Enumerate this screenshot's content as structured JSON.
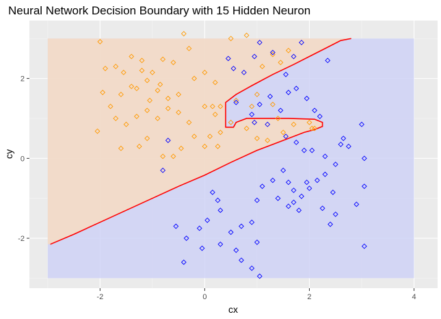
{
  "chart_data": {
    "type": "scatter",
    "title": "Neural Network Decision Boundary with 15 Hidden Neuron",
    "xlabel": "cx",
    "ylabel": "cy",
    "xlim": [
      -3.35,
      4.45
    ],
    "ylim": [
      -3.25,
      3.45
    ],
    "x_ticks": [
      -2,
      0,
      2,
      4
    ],
    "y_ticks": [
      -2,
      0,
      2
    ],
    "grid": true,
    "panel_background": "#ebebeb",
    "region_colors": {
      "orange": "#f5dcc5",
      "blue": "#cfd2f6"
    },
    "region_extent": {
      "x": [
        -3,
        4
      ],
      "y": [
        -3,
        3
      ]
    },
    "boundary_color": "#ff0000",
    "boundary": [
      [
        -2.95,
        -2.15
      ],
      [
        -2.5,
        -1.9
      ],
      [
        -2.0,
        -1.6
      ],
      [
        -1.5,
        -1.3
      ],
      [
        -1.0,
        -1.0
      ],
      [
        -0.5,
        -0.7
      ],
      [
        0.0,
        -0.42
      ],
      [
        0.5,
        -0.1
      ],
      [
        1.0,
        0.2
      ],
      [
        1.5,
        0.45
      ],
      [
        1.9,
        0.65
      ],
      [
        2.1,
        0.72
      ],
      [
        2.25,
        0.8
      ],
      [
        2.25,
        0.9
      ],
      [
        2.1,
        0.98
      ],
      [
        1.6,
        1.0
      ],
      [
        1.2,
        1.0
      ],
      [
        0.8,
        1.0
      ],
      [
        0.6,
        0.9
      ],
      [
        0.55,
        0.78
      ],
      [
        0.4,
        0.78
      ],
      [
        0.4,
        1.4
      ],
      [
        0.6,
        1.6
      ],
      [
        0.9,
        1.82
      ],
      [
        1.3,
        2.1
      ],
      [
        1.7,
        2.35
      ],
      [
        2.0,
        2.55
      ],
      [
        2.3,
        2.75
      ],
      [
        2.6,
        2.95
      ],
      [
        2.8,
        3.0
      ]
    ],
    "series": [
      {
        "color": "#ff9900",
        "points": [
          [
            -2.0,
            2.92
          ],
          [
            -1.9,
            2.25
          ],
          [
            -1.7,
            2.3
          ],
          [
            -1.55,
            2.15
          ],
          [
            -1.4,
            2.55
          ],
          [
            -1.2,
            2.45
          ],
          [
            -1.0,
            2.15
          ],
          [
            -0.8,
            2.48
          ],
          [
            -0.6,
            2.4
          ],
          [
            -0.4,
            3.12
          ],
          [
            -0.3,
            2.75
          ],
          [
            -1.95,
            1.65
          ],
          [
            -1.8,
            1.3
          ],
          [
            -1.6,
            1.6
          ],
          [
            -1.4,
            1.8
          ],
          [
            -1.3,
            1.75
          ],
          [
            -1.1,
            1.95
          ],
          [
            -0.9,
            1.7
          ],
          [
            -0.7,
            1.5
          ],
          [
            -0.5,
            1.6
          ],
          [
            -0.2,
            2.0
          ],
          [
            0.0,
            2.15
          ],
          [
            0.2,
            1.9
          ],
          [
            -1.7,
            1.0
          ],
          [
            -1.5,
            0.85
          ],
          [
            -1.3,
            1.05
          ],
          [
            -1.1,
            1.2
          ],
          [
            -0.9,
            1.0
          ],
          [
            -0.7,
            1.25
          ],
          [
            -0.5,
            1.15
          ],
          [
            -0.3,
            0.9
          ],
          [
            0.0,
            1.3
          ],
          [
            0.2,
            1.1
          ],
          [
            0.3,
            1.3
          ],
          [
            -1.1,
            0.5
          ],
          [
            -1.6,
            0.25
          ],
          [
            -0.8,
            0.05
          ],
          [
            -0.6,
            0.05
          ],
          [
            -0.2,
            0.55
          ],
          [
            0.0,
            0.3
          ],
          [
            0.1,
            0.55
          ],
          [
            0.3,
            0.65
          ],
          [
            0.5,
            0.9
          ],
          [
            0.8,
            0.75
          ],
          [
            1.0,
            0.5
          ],
          [
            1.2,
            0.45
          ],
          [
            1.5,
            0.65
          ],
          [
            2.0,
            0.9
          ],
          [
            2.05,
            0.75
          ],
          [
            2.1,
            0.75
          ],
          [
            0.6,
            1.45
          ],
          [
            0.9,
            1.3
          ],
          [
            1.0,
            1.6
          ],
          [
            1.3,
            1.35
          ],
          [
            1.1,
            2.3
          ],
          [
            1.3,
            2.6
          ],
          [
            1.6,
            2.7
          ],
          [
            0.8,
            3.08
          ],
          [
            0.5,
            3.0
          ],
          [
            -2.05,
            0.68
          ],
          [
            -1.25,
            0.3
          ],
          [
            -0.45,
            0.25
          ],
          [
            1.4,
            1.0
          ],
          [
            1.7,
            0.85
          ],
          [
            0.25,
            0.3
          ],
          [
            -0.85,
            1.85
          ],
          [
            -1.05,
            1.45
          ],
          [
            0.15,
            1.3
          ],
          [
            1.45,
            2.4
          ],
          [
            -1.2,
            2.2
          ]
        ]
      },
      {
        "color": "#0000ff",
        "points": [
          [
            0.45,
            2.5
          ],
          [
            0.55,
            2.25
          ],
          [
            0.75,
            2.15
          ],
          [
            0.95,
            2.55
          ],
          [
            1.05,
            2.9
          ],
          [
            1.3,
            2.65
          ],
          [
            1.55,
            2.1
          ],
          [
            1.7,
            2.55
          ],
          [
            1.85,
            2.9
          ],
          [
            2.35,
            2.45
          ],
          [
            0.6,
            1.4
          ],
          [
            0.9,
            1.1
          ],
          [
            1.05,
            1.35
          ],
          [
            1.25,
            1.55
          ],
          [
            1.45,
            1.2
          ],
          [
            1.6,
            1.65
          ],
          [
            1.75,
            1.75
          ],
          [
            1.95,
            1.5
          ],
          [
            2.1,
            1.2
          ],
          [
            2.2,
            1.05
          ],
          [
            0.95,
            0.9
          ],
          [
            1.2,
            0.85
          ],
          [
            1.55,
            0.55
          ],
          [
            1.75,
            0.4
          ],
          [
            1.9,
            0.2
          ],
          [
            2.05,
            0.2
          ],
          [
            2.3,
            0.05
          ],
          [
            2.5,
            -0.15
          ],
          [
            2.6,
            0.35
          ],
          [
            2.65,
            0.5
          ],
          [
            2.75,
            0.3
          ],
          [
            3.0,
            0.85
          ],
          [
            3.05,
            0.0
          ],
          [
            3.05,
            -0.7
          ],
          [
            2.9,
            -1.15
          ],
          [
            3.05,
            -2.2
          ],
          [
            1.5,
            -0.3
          ],
          [
            1.6,
            -0.6
          ],
          [
            1.7,
            -0.8
          ],
          [
            1.85,
            -0.95
          ],
          [
            2.0,
            -0.75
          ],
          [
            2.15,
            -0.55
          ],
          [
            2.3,
            -0.4
          ],
          [
            2.45,
            -0.85
          ],
          [
            2.5,
            -1.4
          ],
          [
            2.4,
            -1.65
          ],
          [
            1.8,
            -1.3
          ],
          [
            1.6,
            -1.2
          ],
          [
            1.4,
            -1.0
          ],
          [
            1.1,
            -0.7
          ],
          [
            1.0,
            -1.05
          ],
          [
            0.9,
            -1.6
          ],
          [
            0.7,
            -1.7
          ],
          [
            0.5,
            -1.85
          ],
          [
            0.3,
            -1.3
          ],
          [
            0.25,
            -1.05
          ],
          [
            0.05,
            -1.55
          ],
          [
            -0.1,
            -1.75
          ],
          [
            -0.35,
            -2.0
          ],
          [
            -0.05,
            -2.25
          ],
          [
            0.3,
            -2.15
          ],
          [
            0.6,
            -2.3
          ],
          [
            0.7,
            -2.55
          ],
          [
            0.9,
            -2.75
          ],
          [
            1.05,
            -2.95
          ],
          [
            1.0,
            -2.1
          ],
          [
            -0.4,
            -2.6
          ],
          [
            -0.55,
            -1.7
          ],
          [
            -0.7,
            0.45
          ],
          [
            -0.8,
            -0.3
          ],
          [
            0.15,
            -0.85
          ],
          [
            1.95,
            -0.6
          ],
          [
            2.25,
            -1.25
          ],
          [
            1.3,
            -0.55
          ],
          [
            1.7,
            -1.1
          ]
        ]
      }
    ]
  }
}
